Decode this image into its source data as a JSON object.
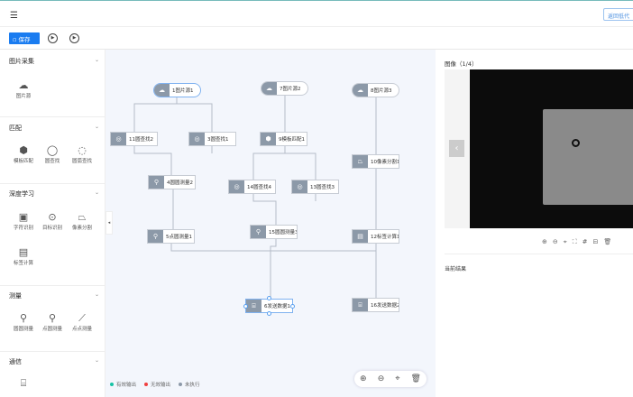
{
  "header": {
    "back_label": "返回低代"
  },
  "toolbar": {
    "save_label": "保存"
  },
  "sidebar": {
    "sections": [
      {
        "title": "图片采集",
        "items": [
          "图片源"
        ]
      },
      {
        "title": "匹配",
        "items": [
          "模板匹配",
          "圆查找",
          "圆弧查找"
        ]
      },
      {
        "title": "深度学习",
        "items": [
          "字符识别",
          "目标识别",
          "像素分割",
          "标签计算"
        ]
      },
      {
        "title": "测量",
        "items": [
          "圆圆测量",
          "点圆测量",
          "点点测量"
        ]
      },
      {
        "title": "通信",
        "items": [
          ""
        ]
      }
    ]
  },
  "nodes": [
    "1图片源1",
    "7图片源2",
    "8图片源3",
    "11圆查找2",
    "3圆查找1",
    "9模板匹配1",
    "10像素分割1",
    "4圆圆测量2",
    "14圆查找4",
    "13圆查找3",
    "5点圆测量1",
    "15圆圆测量3",
    "12标签计算1",
    "6发送数据1",
    "16发送数据2"
  ],
  "legend": [
    {
      "label": "有效输出",
      "color": "#17c3a5"
    },
    {
      "label": "无效输出",
      "color": "#f04040"
    },
    {
      "label": "未执行",
      "color": "#8c99a8"
    }
  ],
  "right": {
    "image_title": "图像（1/4）",
    "result_title": "当前结果"
  }
}
